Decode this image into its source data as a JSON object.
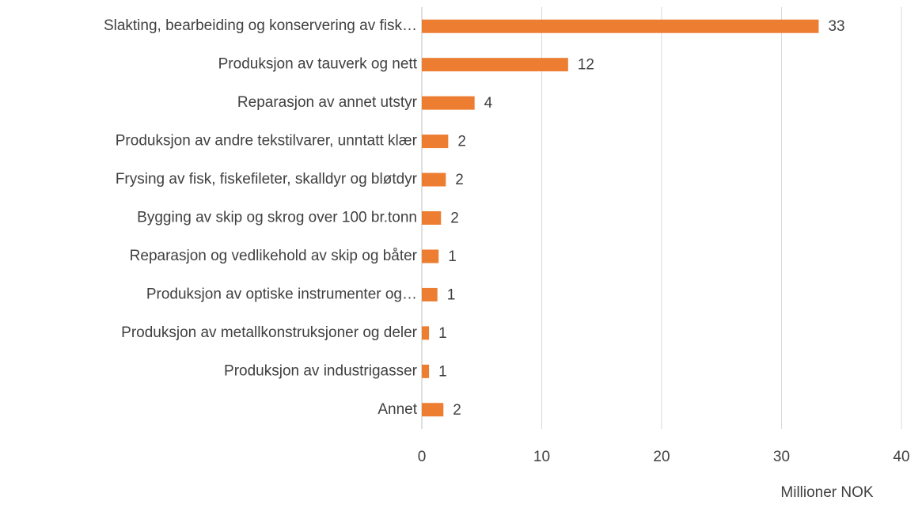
{
  "chart_data": {
    "type": "barh",
    "categories": [
      "Slakting, bearbeiding og konservering av fisk…",
      "Produksjon av tauverk og nett",
      "Reparasjon av annet utstyr",
      "Produksjon av andre tekstilvarer, unntatt klær",
      "Frysing av fisk, fiskefileter, skalldyr og bløtdyr",
      "Bygging av skip og skrog over 100 br.tonn",
      "Reparasjon og vedlikehold av skip og båter",
      "Produksjon av optiske instrumenter og…",
      "Produksjon av metallkonstruksjoner og deler",
      "Produksjon av industrigasser",
      "Annet"
    ],
    "values": [
      33.1,
      12.2,
      4.4,
      2.2,
      2.0,
      1.6,
      1.4,
      1.3,
      0.6,
      0.6,
      1.8
    ],
    "value_labels": [
      "33",
      "12",
      "4",
      "2",
      "2",
      "2",
      "1",
      "1",
      "1",
      "1",
      "2"
    ],
    "color": "#ed7d31",
    "xlim": [
      0,
      40
    ],
    "xticks": [
      0,
      10,
      20,
      30,
      40
    ],
    "grid": true,
    "xlabel": "Millioner NOK"
  }
}
